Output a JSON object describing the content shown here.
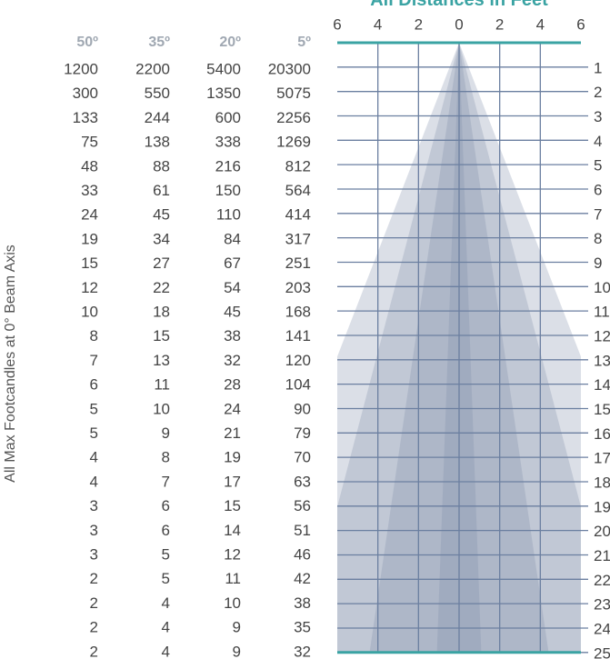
{
  "side_label": "All Max Footcandles at 0° Beam Axis",
  "table": {
    "headers": [
      "50º",
      "35º",
      "20º",
      "5º"
    ],
    "rows": [
      [
        "1200",
        "2200",
        "5400",
        "20300"
      ],
      [
        "300",
        "550",
        "1350",
        "5075"
      ],
      [
        "133",
        "244",
        "600",
        "2256"
      ],
      [
        "75",
        "138",
        "338",
        "1269"
      ],
      [
        "48",
        "88",
        "216",
        "812"
      ],
      [
        "33",
        "61",
        "150",
        "564"
      ],
      [
        "24",
        "45",
        "110",
        "414"
      ],
      [
        "19",
        "34",
        "84",
        "317"
      ],
      [
        "15",
        "27",
        "67",
        "251"
      ],
      [
        "12",
        "22",
        "54",
        "203"
      ],
      [
        "10",
        "18",
        "45",
        "168"
      ],
      [
        "8",
        "15",
        "38",
        "141"
      ],
      [
        "7",
        "13",
        "32",
        "120"
      ],
      [
        "6",
        "11",
        "28",
        "104"
      ],
      [
        "5",
        "10",
        "24",
        "90"
      ],
      [
        "5",
        "9",
        "21",
        "79"
      ],
      [
        "4",
        "8",
        "19",
        "70"
      ],
      [
        "4",
        "7",
        "17",
        "63"
      ],
      [
        "3",
        "6",
        "15",
        "56"
      ],
      [
        "3",
        "6",
        "14",
        "51"
      ],
      [
        "3",
        "5",
        "12",
        "46"
      ],
      [
        "2",
        "5",
        "11",
        "42"
      ],
      [
        "2",
        "4",
        "10",
        "38"
      ],
      [
        "2",
        "4",
        "9",
        "35"
      ],
      [
        "2",
        "4",
        "9",
        "32"
      ]
    ]
  },
  "diagram": {
    "title": "All Distances in Feet",
    "scale": [
      "6",
      "4",
      "2",
      "0",
      "2",
      "4",
      "6"
    ],
    "distances": [
      "1",
      "2",
      "3",
      "4",
      "5",
      "6",
      "7",
      "8",
      "9",
      "10",
      "11",
      "12",
      "13",
      "14",
      "15",
      "16",
      "17",
      "18",
      "19",
      "20",
      "21",
      "22",
      "23",
      "24",
      "25"
    ]
  }
}
